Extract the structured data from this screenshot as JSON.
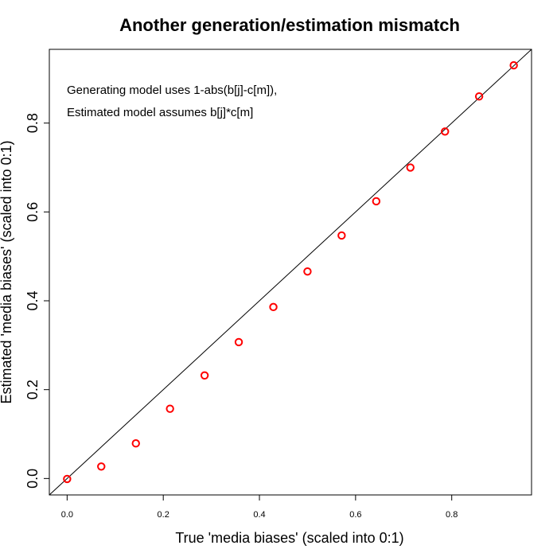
{
  "chart_data": {
    "type": "scatter",
    "title": "Another generation/estimation mismatch",
    "xlabel": "True 'media biases' (scaled into 0:1)",
    "ylabel": "Estimated 'media biases' (scaled into 0:1)",
    "xlim": [
      -0.037,
      0.966
    ],
    "ylim": [
      -0.037,
      0.966
    ],
    "x_ticks": [
      0.0,
      0.2,
      0.4,
      0.6,
      0.8
    ],
    "x_tick_labels": [
      "0.0",
      "0.2",
      "0.4",
      "0.6",
      "0.8"
    ],
    "y_ticks": [
      0.0,
      0.2,
      0.4,
      0.6,
      0.8
    ],
    "y_tick_labels": [
      "0.0",
      "0.2",
      "0.4",
      "0.6",
      "0.8"
    ],
    "grid": false,
    "annotations": [
      "Generating model uses 1-abs(b[j]-c[m]),",
      "Estimated model assumes b[j]*c[m]"
    ],
    "reference_line": {
      "intercept": 0,
      "slope": 1,
      "color": "#000000"
    },
    "series": [
      {
        "marker": "open-circle",
        "color": "#ff0000",
        "x": [
          0.0,
          0.071,
          0.143,
          0.214,
          0.286,
          0.357,
          0.429,
          0.5,
          0.571,
          0.643,
          0.714,
          0.786,
          0.857,
          0.929
        ],
        "y": [
          -0.001,
          0.027,
          0.079,
          0.157,
          0.232,
          0.307,
          0.386,
          0.466,
          0.547,
          0.624,
          0.7,
          0.781,
          0.86,
          0.93
        ]
      }
    ]
  }
}
